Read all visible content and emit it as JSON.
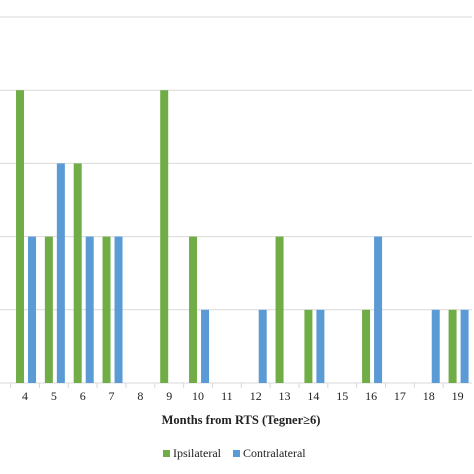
{
  "chart_data": {
    "type": "bar",
    "x_label": "Months from RTS (Tegner≥6)",
    "categories": [
      "4",
      "5",
      "6",
      "7",
      "8",
      "9",
      "10",
      "11",
      "12",
      "13",
      "14",
      "15",
      "16",
      "17",
      "18",
      "19"
    ],
    "series": [
      {
        "name": "Ipsilateral",
        "color": "#70ad47",
        "values": [
          4,
          2,
          3,
          2,
          0,
          4,
          2,
          0,
          0,
          2,
          1,
          0,
          1,
          0,
          0,
          1
        ]
      },
      {
        "name": "Contralateral",
        "color": "#5b9bd5",
        "values": [
          2,
          3,
          2,
          2,
          0,
          0,
          1,
          0,
          1,
          0,
          1,
          0,
          2,
          0,
          1,
          1
        ]
      }
    ],
    "ylim": [
      0,
      5
    ],
    "yticks": [
      0,
      1,
      2,
      3,
      4,
      5
    ],
    "grid": true
  }
}
